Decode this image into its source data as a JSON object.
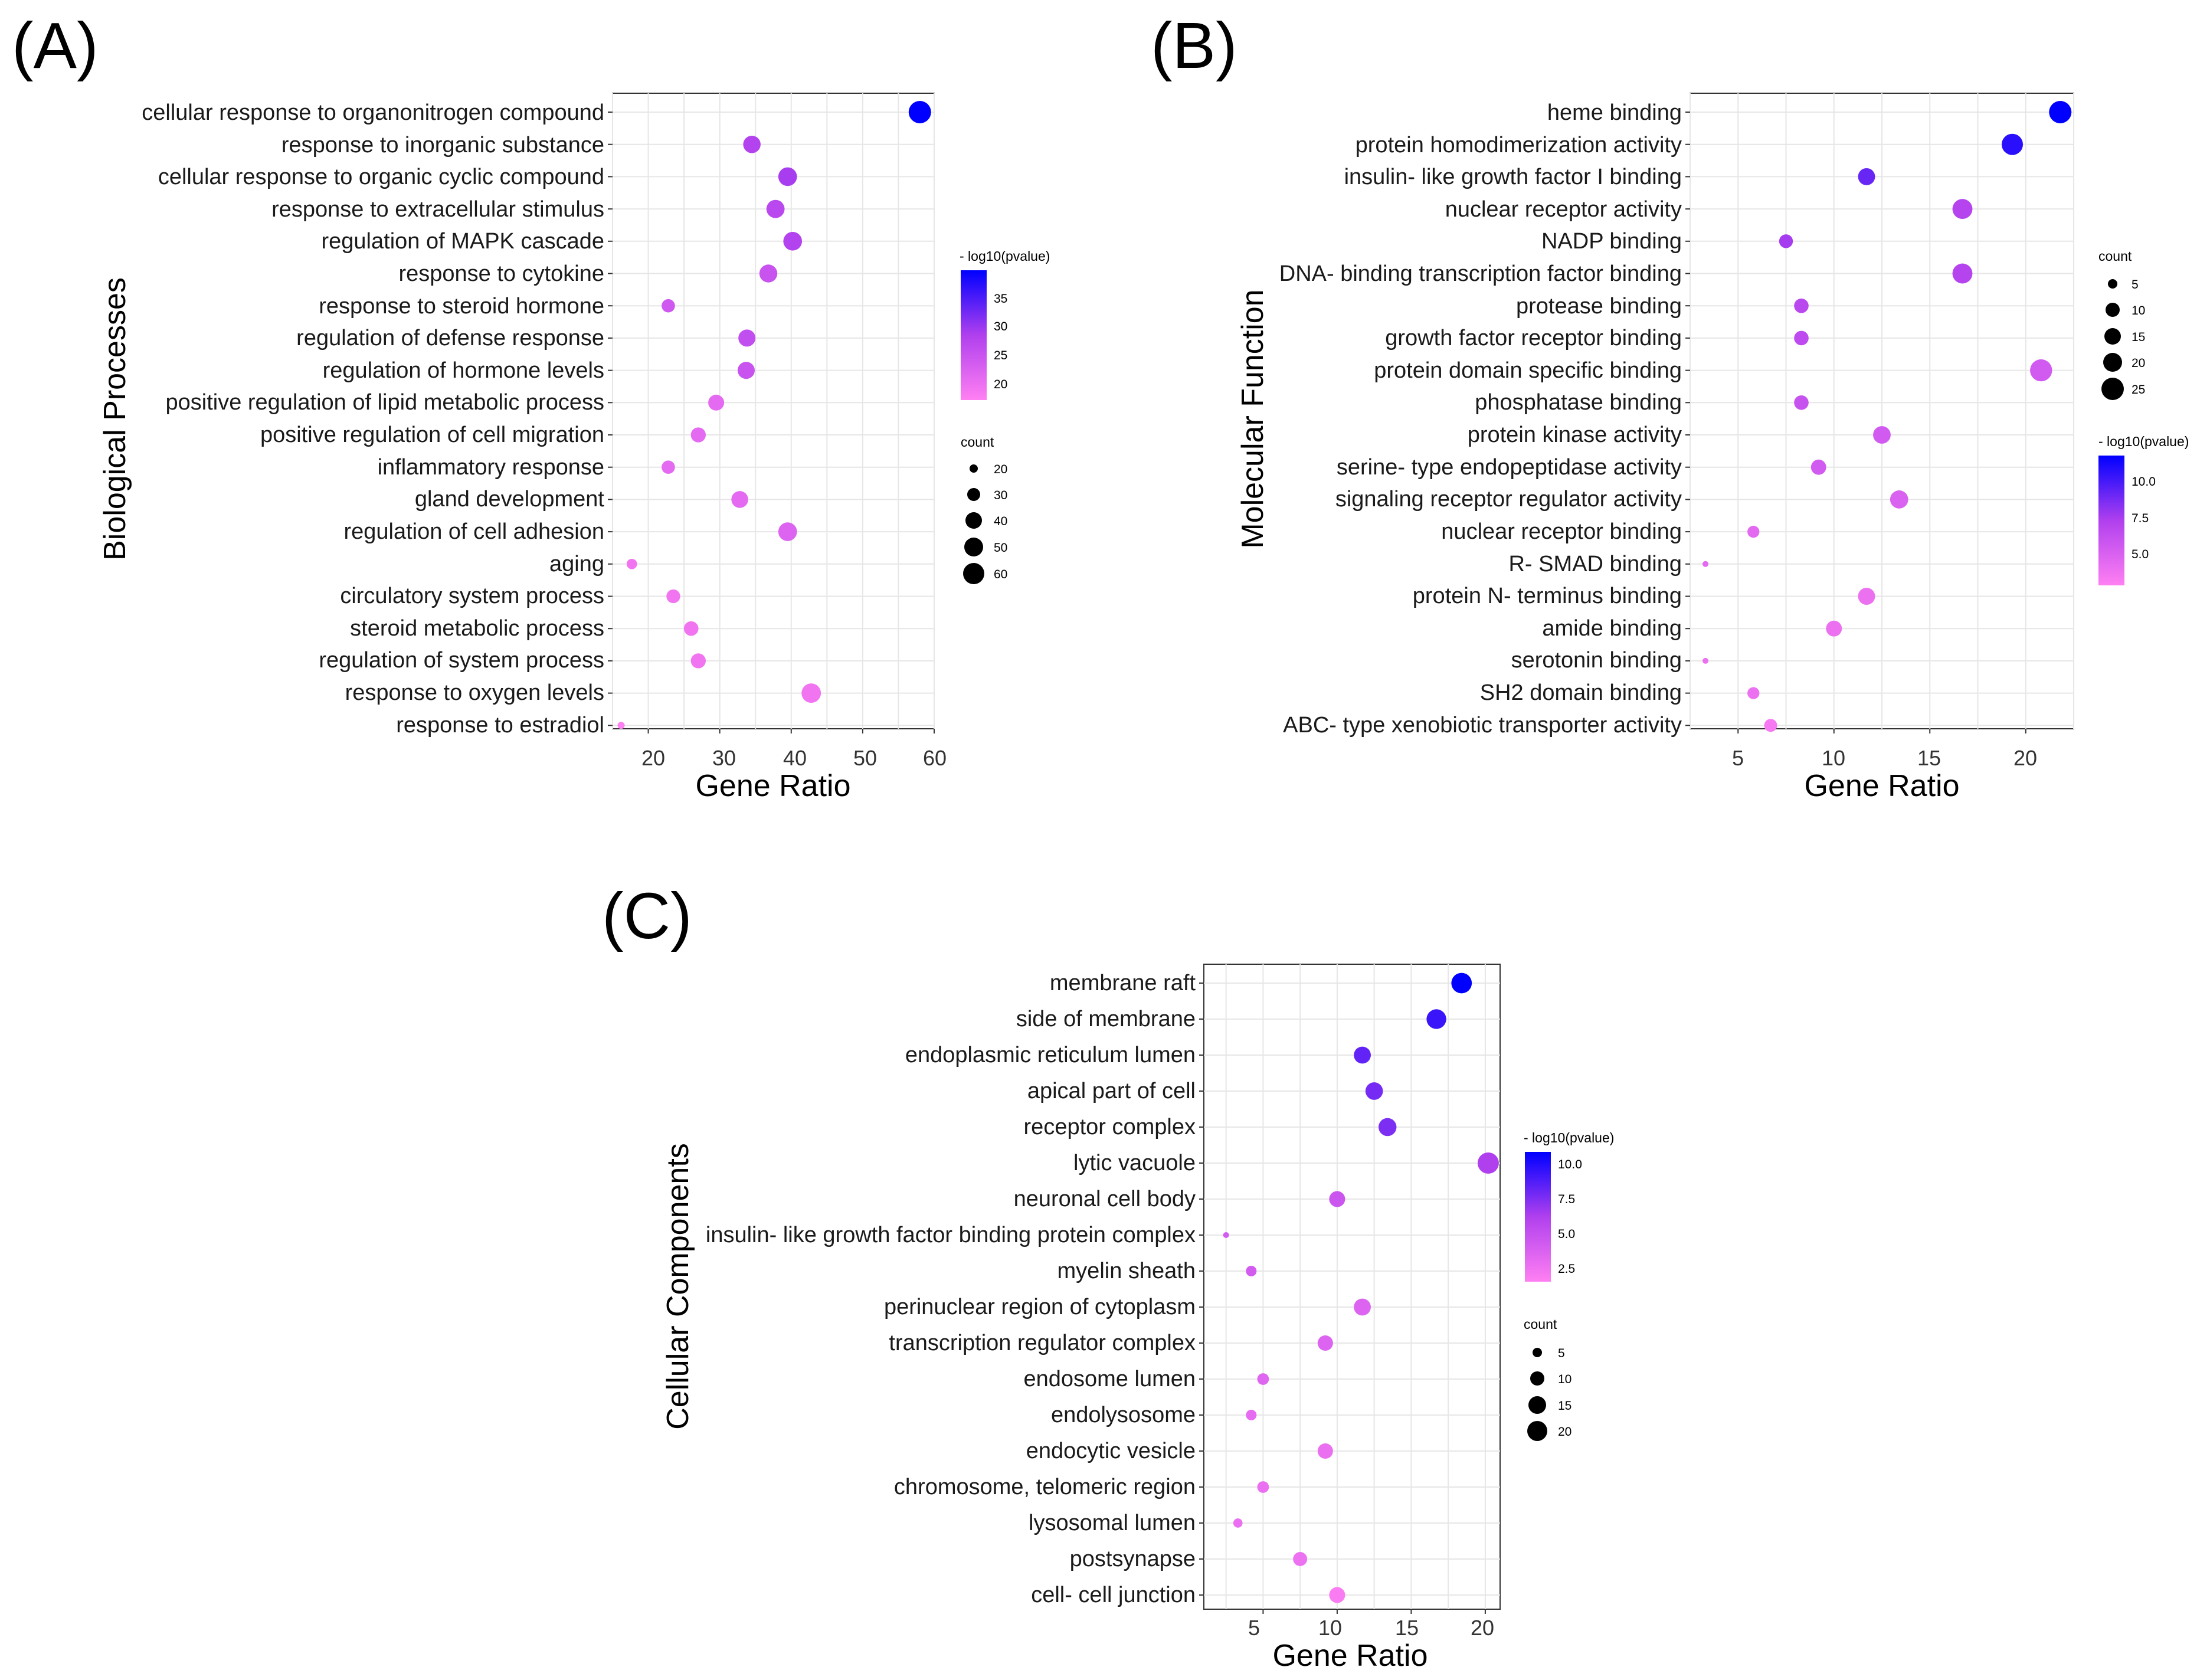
{
  "figure": {
    "colors": {
      "low": "#ff80f2",
      "mid": "#b040ee",
      "high": "#0000ff",
      "grid": "#e6e6e6",
      "border": "#333333"
    }
  },
  "chart_data": [
    {
      "panel": "(A)",
      "type": "scatter",
      "subtype": "bubble",
      "xlabel": "Gene Ratio",
      "ylabel": "Biological Processes",
      "xlim": [
        15,
        60
      ],
      "xticks": [
        20,
        30,
        40,
        50,
        60
      ],
      "categories": [
        "cellular response to organonitrogen compound",
        "response to inorganic substance",
        "cellular response to organic cyclic compound",
        "response to extracellular stimulus",
        "regulation of MAPK cascade",
        "response to cytokine",
        "response to steroid hormone",
        "regulation of defense response",
        "regulation of hormone levels",
        "positive regulation of lipid metabolic process",
        "positive regulation of cell migration",
        "inflammatory response",
        "gland development",
        "regulation of cell adhesion",
        "aging",
        "circulatory system process",
        "steroid metabolic process",
        "regulation of system process",
        "response to oxygen levels",
        "response to estradiol"
      ],
      "x": [
        58,
        34.5,
        39.5,
        37.8,
        40.2,
        36.8,
        22.8,
        33.8,
        33.7,
        29.5,
        27,
        22.8,
        32.8,
        39.5,
        17.7,
        23.5,
        26,
        27,
        42.8,
        16.2
      ],
      "count": [
        58,
        35,
        40,
        38,
        40,
        37,
        23,
        34,
        34,
        30,
        27,
        23,
        33,
        40,
        18,
        24,
        26,
        27,
        43,
        16
      ],
      "neg_log10_pvalue": [
        40,
        28,
        29,
        27,
        28,
        25,
        24,
        26,
        25,
        21,
        21,
        21,
        21,
        22,
        19,
        19,
        19,
        19,
        19,
        17
      ],
      "color_legend": {
        "title": "- log10(pvalue)",
        "ticks": [
          20,
          25,
          30,
          35
        ],
        "range": [
          17,
          40
        ]
      },
      "size_legend": {
        "title": "count",
        "ticks": [
          20,
          30,
          40,
          50,
          60
        ]
      }
    },
    {
      "panel": "(B)",
      "type": "scatter",
      "subtype": "bubble",
      "xlabel": "Gene Ratio",
      "ylabel": "Molecular Function",
      "xlim": [
        2.5,
        22.5
      ],
      "xticks": [
        5,
        10,
        15,
        20
      ],
      "categories": [
        "heme binding",
        "protein homodimerization activity",
        "insulin- like growth factor I binding",
        "nuclear receptor activity",
        "NADP binding",
        "DNA- binding transcription factor binding",
        "protease binding",
        "growth factor receptor binding",
        "protein domain specific binding",
        "phosphatase binding",
        "protein kinase activity",
        "serine- type endopeptidase activity",
        "signaling receptor regulator activity",
        "nuclear receptor binding",
        "R- SMAD binding",
        "protein N- terminus binding",
        "amide binding",
        "serotonin binding",
        "SH2 domain binding",
        "ABC- type xenobiotic transporter activity"
      ],
      "x": [
        21.8,
        19.3,
        11.7,
        16.7,
        7.5,
        16.7,
        8.3,
        8.3,
        20.8,
        8.3,
        12.5,
        9.2,
        13.4,
        5.8,
        3.3,
        11.7,
        10,
        3.3,
        5.8,
        6.7
      ],
      "count": [
        26,
        23,
        14,
        20,
        9,
        20,
        10,
        10,
        25,
        10,
        15,
        11,
        16,
        7,
        4,
        14,
        12,
        4,
        7,
        8
      ],
      "neg_log10_pvalue": [
        12,
        11,
        9.5,
        7.5,
        8,
        7.5,
        7.2,
        7,
        6,
        6.5,
        6,
        6,
        5.5,
        5,
        5,
        4.5,
        4.5,
        4.5,
        4.5,
        4
      ],
      "color_legend": {
        "title": "- log10(pvalue)",
        "ticks": [
          5.0,
          7.5,
          10.0
        ],
        "labels": [
          "5.0",
          "7.5",
          "10.0"
        ],
        "range": [
          3.5,
          12
        ]
      },
      "size_legend": {
        "title": "count",
        "ticks": [
          5,
          10,
          15,
          20,
          25
        ]
      }
    },
    {
      "panel": "(C)",
      "type": "scatter",
      "subtype": "bubble",
      "xlabel": "Gene Ratio",
      "ylabel": "Cellular Components",
      "xlim": [
        1,
        21
      ],
      "xticks": [
        5,
        10,
        15,
        20
      ],
      "categories": [
        "membrane raft",
        "side of membrane",
        "endoplasmic reticulum lumen",
        "apical part of cell",
        "receptor complex",
        "lytic vacuole",
        "neuronal cell body",
        "insulin- like growth factor binding protein complex",
        "myelin sheath",
        "perinuclear region of cytoplasm",
        "transcription regulator complex",
        "endosome lumen",
        "endolysosome",
        "endocytic vesicle",
        "chromosome, telomeric region",
        "lysosomal lumen",
        "postsynapse",
        "cell- cell junction"
      ],
      "x": [
        18.4,
        16.7,
        11.7,
        12.5,
        13.4,
        20.2,
        10,
        2.5,
        4.2,
        11.7,
        9.2,
        5,
        4.2,
        9.2,
        5,
        3.3,
        7.5,
        10
      ],
      "count": [
        22,
        20,
        14,
        15,
        16,
        24,
        12,
        3,
        5,
        14,
        11,
        6,
        5,
        11,
        6,
        4,
        9,
        12
      ],
      "neg_log10_pvalue": [
        11,
        9.5,
        8.5,
        8,
        7.8,
        6.5,
        5,
        4.5,
        4.5,
        4,
        4,
        3.8,
        3.5,
        3.2,
        3.2,
        3.2,
        3,
        2.3
      ],
      "color_legend": {
        "title": "- log10(pvalue)",
        "ticks": [
          2.5,
          5.0,
          7.5,
          10.0
        ],
        "labels": [
          "2.5",
          "5.0",
          "7.5",
          "10.0"
        ],
        "range": [
          2,
          11
        ]
      },
      "size_legend": {
        "title": "count",
        "ticks": [
          5,
          10,
          15,
          20
        ]
      }
    }
  ]
}
